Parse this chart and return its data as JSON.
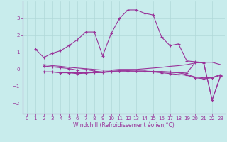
{
  "xlabel": "Windchill (Refroidissement éolien,°C)",
  "background_color": "#c8ecec",
  "grid_color": "#b0d8d8",
  "line_color": "#993399",
  "xlim": [
    -0.5,
    23.5
  ],
  "ylim": [
    -2.6,
    4.0
  ],
  "yticks": [
    -2,
    -1,
    0,
    1,
    2,
    3
  ],
  "xticks": [
    0,
    1,
    2,
    3,
    4,
    5,
    6,
    7,
    8,
    9,
    10,
    11,
    12,
    13,
    14,
    15,
    16,
    17,
    18,
    19,
    20,
    21,
    22,
    23
  ],
  "series": [
    {
      "x": [
        1,
        2,
        3,
        4,
        5,
        6,
        7,
        8,
        9,
        10,
        11,
        12,
        13,
        14,
        15,
        16,
        17,
        18,
        19,
        20,
        21,
        22,
        23
      ],
      "y": [
        1.2,
        0.7,
        0.95,
        1.1,
        1.4,
        1.75,
        2.2,
        2.2,
        0.8,
        2.1,
        3.0,
        3.5,
        3.5,
        3.3,
        3.2,
        1.9,
        1.4,
        1.5,
        0.5,
        0.45,
        0.4,
        -1.8,
        -0.4
      ],
      "marker": true
    },
    {
      "x": [
        2,
        3,
        4,
        5,
        6,
        7,
        8,
        9,
        10,
        11,
        12,
        13,
        14,
        15,
        16,
        17,
        18,
        19,
        20,
        21,
        22,
        23
      ],
      "y": [
        0.2,
        0.15,
        0.1,
        0.05,
        -0.05,
        0.0,
        -0.1,
        -0.15,
        -0.1,
        -0.1,
        -0.1,
        -0.1,
        -0.1,
        -0.15,
        -0.2,
        -0.25,
        -0.3,
        -0.35,
        -0.5,
        -0.55,
        -0.5,
        -0.35
      ],
      "marker": true
    },
    {
      "x": [
        2,
        3,
        4,
        5,
        6,
        7,
        8,
        9,
        10,
        11,
        12,
        13,
        14,
        15,
        16,
        17,
        18,
        19,
        20,
        21,
        22,
        23
      ],
      "y": [
        -0.15,
        -0.15,
        -0.18,
        -0.2,
        -0.2,
        -0.2,
        -0.2,
        -0.18,
        -0.15,
        -0.15,
        -0.15,
        -0.15,
        -0.15,
        -0.15,
        -0.15,
        -0.18,
        -0.2,
        -0.3,
        -0.45,
        -0.5,
        -0.48,
        -0.3
      ],
      "marker": false
    },
    {
      "x": [
        2,
        3,
        4,
        5,
        6,
        7,
        8,
        9,
        10,
        11,
        12,
        13,
        14,
        15,
        16,
        17,
        18,
        19,
        20,
        21,
        22,
        23
      ],
      "y": [
        -0.15,
        -0.15,
        -0.2,
        -0.2,
        -0.25,
        -0.22,
        -0.18,
        -0.18,
        -0.12,
        -0.08,
        -0.08,
        -0.1,
        -0.1,
        -0.12,
        -0.12,
        -0.15,
        -0.18,
        -0.22,
        0.42,
        0.38,
        -1.8,
        -0.38
      ],
      "marker": true
    },
    {
      "x": [
        2,
        3,
        4,
        5,
        6,
        7,
        8,
        9,
        10,
        11,
        12,
        13,
        14,
        15,
        16,
        17,
        18,
        19,
        20,
        21,
        22,
        23
      ],
      "y": [
        0.28,
        0.22,
        0.18,
        0.12,
        0.08,
        0.04,
        0.0,
        -0.04,
        -0.04,
        0.0,
        0.0,
        0.0,
        0.04,
        0.08,
        0.12,
        0.18,
        0.22,
        0.28,
        0.38,
        0.42,
        0.42,
        0.28
      ],
      "marker": false
    }
  ]
}
